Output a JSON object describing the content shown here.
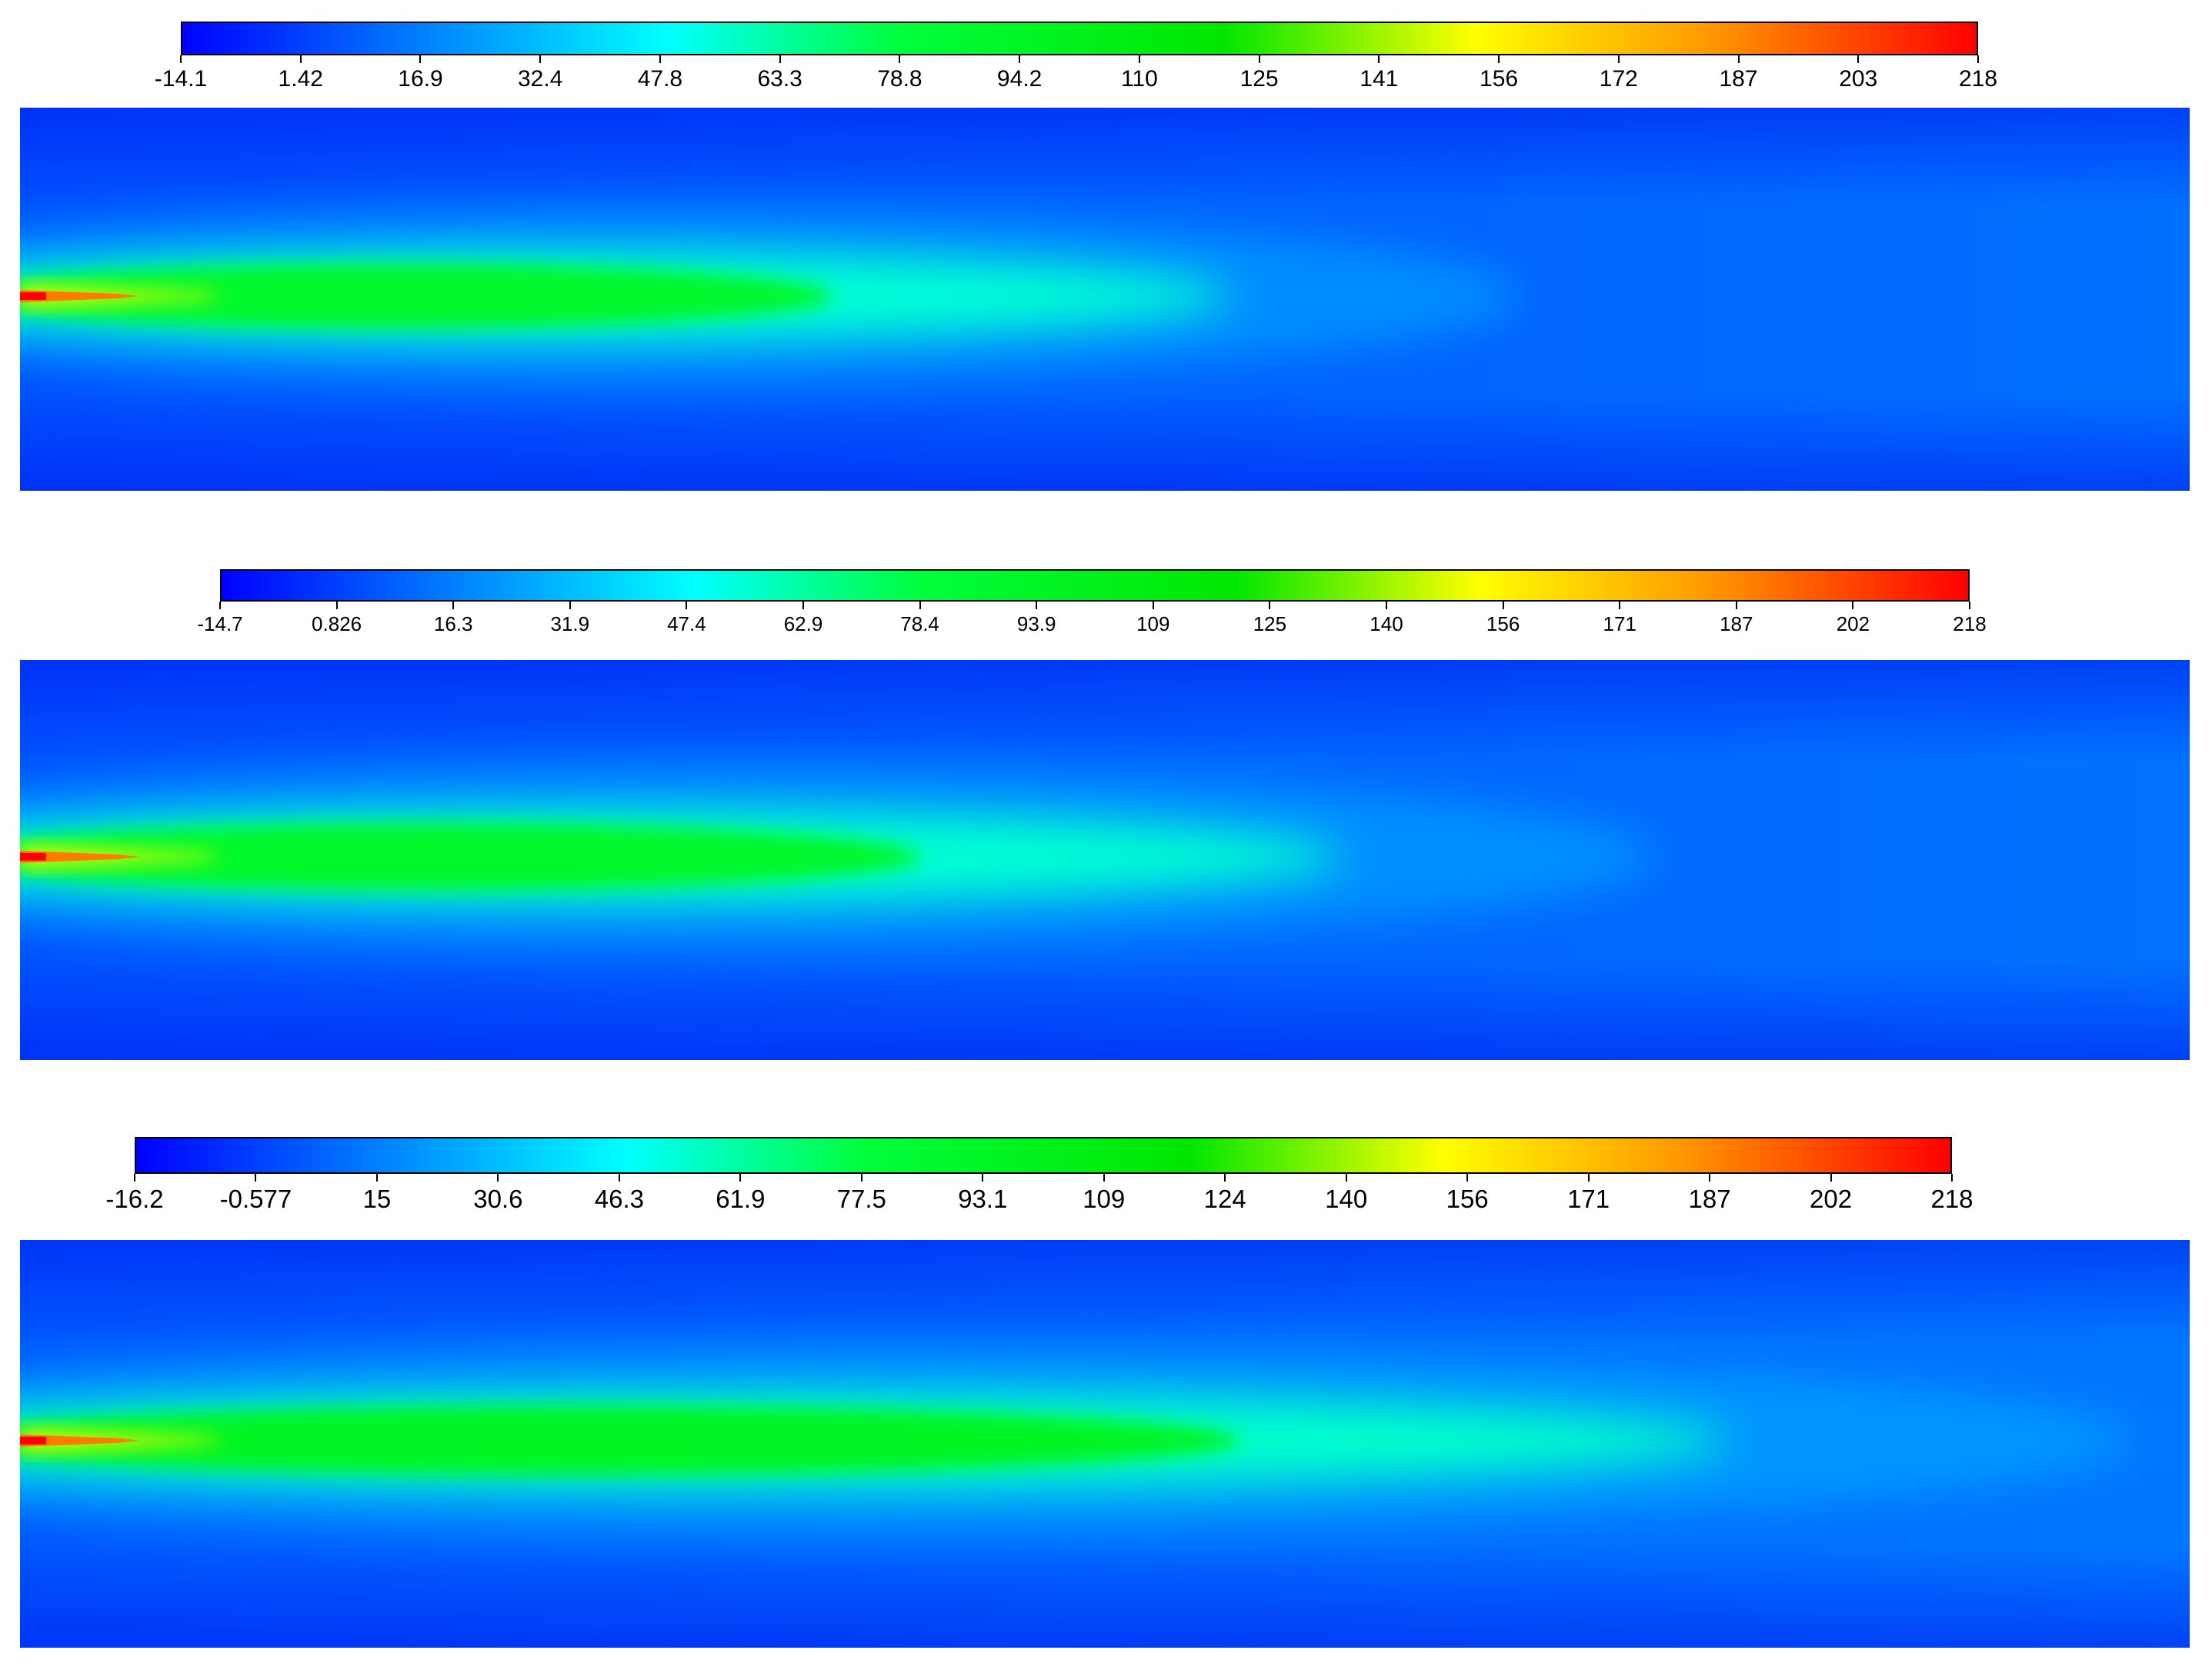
{
  "colormap": [
    "#0000ff",
    "#0073ff",
    "#00ffff",
    "#00ff3c",
    "#00e600",
    "#ffff00",
    "#ff9900",
    "#ff0000"
  ],
  "chart_data": [
    {
      "type": "heatmap",
      "colorbar_ticks": [
        "-14.1",
        "1.42",
        "16.9",
        "32.4",
        "47.8",
        "63.3",
        "78.8",
        "94.2",
        "110",
        "125",
        "141",
        "156",
        "172",
        "187",
        "203",
        "218"
      ],
      "range": [
        -14.1,
        218
      ],
      "peak_value": 218,
      "core_value": 90,
      "core_end_fraction": 0.28,
      "plume_length_fraction": 0.44,
      "background_value": 5
    },
    {
      "type": "heatmap",
      "colorbar_ticks": [
        "-14.7",
        "0.826",
        "16.3",
        "31.9",
        "47.4",
        "62.9",
        "78.4",
        "93.9",
        "109",
        "125",
        "140",
        "156",
        "171",
        "187",
        "202",
        "218"
      ],
      "range": [
        -14.7,
        218
      ],
      "peak_value": 218,
      "core_value": 90,
      "core_end_fraction": 0.31,
      "plume_length_fraction": 0.48,
      "background_value": 5
    },
    {
      "type": "heatmap",
      "colorbar_ticks": [
        "-16.2",
        "-0.577",
        "15",
        "30.6",
        "46.3",
        "61.9",
        "77.5",
        "93.1",
        "109",
        "124",
        "140",
        "156",
        "171",
        "187",
        "202",
        "218"
      ],
      "range": [
        -16.2,
        218
      ],
      "peak_value": 218,
      "core_value": 95,
      "core_end_fraction": 0.42,
      "plume_length_fraction": 0.62,
      "background_value": 5
    }
  ]
}
